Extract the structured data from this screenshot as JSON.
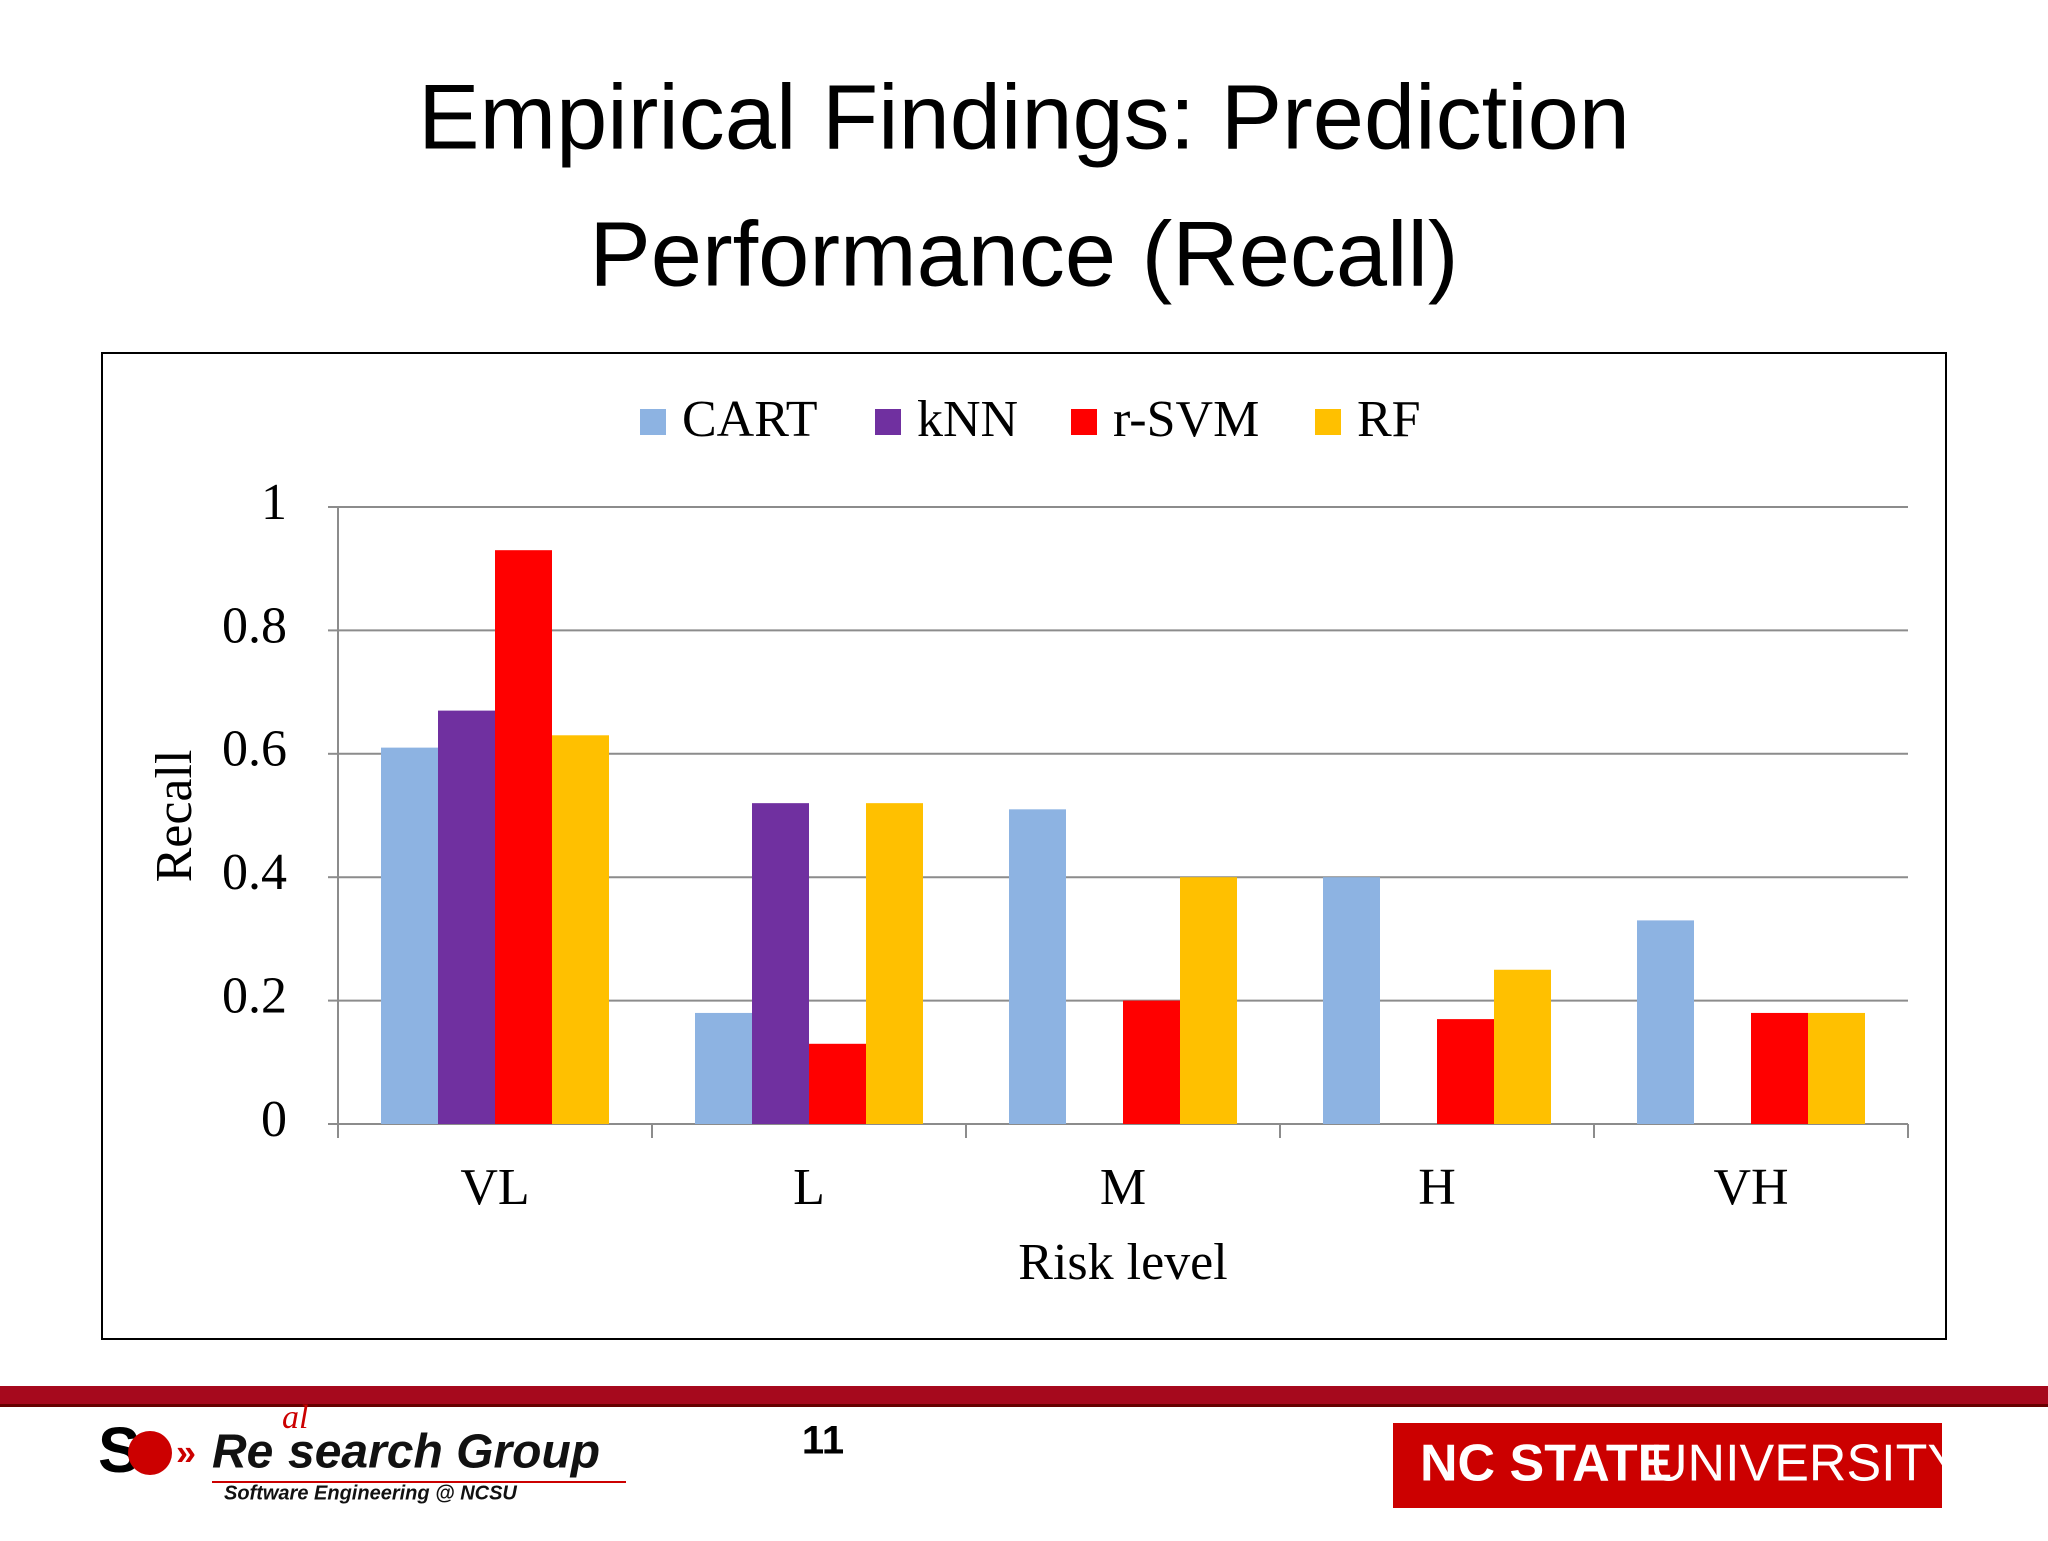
{
  "header": {
    "title_line1": "Empirical Findings: Prediction",
    "title_line2": "Performance (Recall)"
  },
  "chart_data": {
    "type": "bar",
    "categories": [
      "VL",
      "L",
      "M",
      "H",
      "VH"
    ],
    "series": [
      {
        "name": "CART",
        "color": "#8db3e2",
        "values": [
          0.61,
          0.18,
          0.51,
          0.4,
          0.33
        ]
      },
      {
        "name": "kNN",
        "color": "#7030a0",
        "values": [
          0.67,
          0.52,
          0,
          0,
          0
        ]
      },
      {
        "name": "r-SVM",
        "color": "#ff0000",
        "values": [
          0.93,
          0.13,
          0.2,
          0.17,
          0.18
        ]
      },
      {
        "name": "RF",
        "color": "#ffc000",
        "values": [
          0.63,
          0.52,
          0.4,
          0.25,
          0.18
        ]
      }
    ],
    "x_label": "Risk level",
    "y_label": "Recall",
    "ylim": [
      0,
      1
    ],
    "yticks": [
      0,
      0.2,
      0.4,
      0.6,
      0.8,
      1
    ],
    "grid": true,
    "legend": "top"
  },
  "footer": {
    "page_number": "11",
    "logo_re": "Re",
    "logo_al": "al",
    "logo_search": "search Group",
    "logo_sub": "Software Engineering @ NCSU",
    "university_bold": "NC STATE",
    "university_rest": "UNIVERSITY"
  }
}
